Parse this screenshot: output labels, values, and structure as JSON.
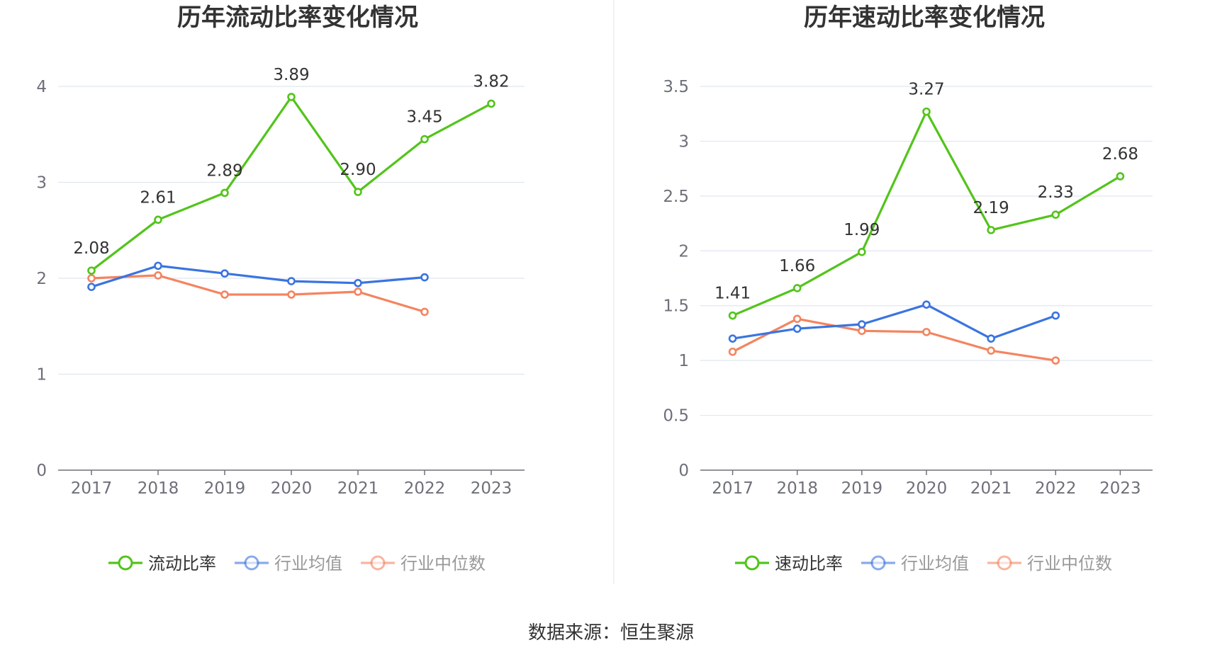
{
  "source_label": "数据来源：恒生聚源",
  "chart_data": [
    {
      "type": "line",
      "title": "历年流动比率变化情况",
      "xlabel": "",
      "ylabel": "",
      "categories": [
        "2017",
        "2018",
        "2019",
        "2020",
        "2021",
        "2022",
        "2023"
      ],
      "ylim": [
        0,
        4
      ],
      "yticks": [
        0,
        1,
        2,
        3,
        4
      ],
      "ytick_labels": [
        "0",
        "1",
        "2",
        "3",
        "4"
      ],
      "grid": true,
      "legend_position": "bottom-center",
      "series": [
        {
          "name": "流动比率",
          "color": "#52c41a",
          "values": [
            2.08,
            2.61,
            2.89,
            3.89,
            2.9,
            3.45,
            3.82
          ],
          "data_labels": [
            "2.08",
            "2.61",
            "2.89",
            "3.89",
            "2.90",
            "3.45",
            "3.82"
          ]
        },
        {
          "name": "行业均值",
          "color": "#3a74e0",
          "values": [
            1.91,
            2.13,
            2.05,
            1.97,
            1.95,
            2.01,
            null
          ]
        },
        {
          "name": "行业中位数",
          "color": "#f4845f",
          "values": [
            2.0,
            2.03,
            1.83,
            1.83,
            1.86,
            1.65,
            null
          ]
        }
      ]
    },
    {
      "type": "line",
      "title": "历年速动比率变化情况",
      "xlabel": "",
      "ylabel": "",
      "categories": [
        "2017",
        "2018",
        "2019",
        "2020",
        "2021",
        "2022",
        "2023"
      ],
      "ylim": [
        0,
        3.5
      ],
      "yticks": [
        0,
        0.5,
        1,
        1.5,
        2,
        2.5,
        3,
        3.5
      ],
      "ytick_labels": [
        "0",
        "0.5",
        "1",
        "1.5",
        "2",
        "2.5",
        "3",
        "3.5"
      ],
      "grid": true,
      "legend_position": "bottom-center",
      "series": [
        {
          "name": "速动比率",
          "color": "#52c41a",
          "values": [
            1.41,
            1.66,
            1.99,
            3.27,
            2.19,
            2.33,
            2.68
          ],
          "data_labels": [
            "1.41",
            "1.66",
            "1.99",
            "3.27",
            "2.19",
            "2.33",
            "2.68"
          ]
        },
        {
          "name": "行业均值",
          "color": "#3a74e0",
          "values": [
            1.2,
            1.29,
            1.33,
            1.51,
            1.2,
            1.41,
            null
          ]
        },
        {
          "name": "行业中位数",
          "color": "#f4845f",
          "values": [
            1.08,
            1.38,
            1.27,
            1.26,
            1.09,
            1.0,
            null
          ]
        }
      ]
    }
  ]
}
